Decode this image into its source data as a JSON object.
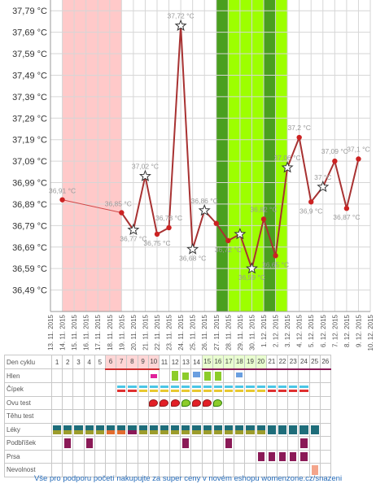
{
  "chart_data": {
    "type": "line",
    "y_ticks": [
      "37,79 °C",
      "37,69 °C",
      "37,59 °C",
      "37,49 °C",
      "37,39 °C",
      "37,29 °C",
      "37,19 °C",
      "37,09 °C",
      "36,99 °C",
      "36,89 °C",
      "36,79 °C",
      "36,69 °C",
      "36,59 °C",
      "36,49 °C"
    ],
    "ylim": [
      36.39,
      37.84
    ],
    "x_dates": [
      "13. 11. 2015",
      "14. 11. 2015",
      "15. 11. 2015",
      "16. 11. 2015",
      "17. 11. 2015",
      "18. 11. 2015",
      "19. 11. 2015",
      "20. 11. 2015",
      "21. 11. 2015",
      "22. 11. 2015",
      "23. 11. 2015",
      "24. 11. 2015",
      "25. 11. 2015",
      "26. 11. 2015",
      "27. 11. 2015",
      "28. 11. 2015",
      "29. 11. 2015",
      "30. 11. 2015",
      "1. 12. 2015",
      "2. 12. 2015",
      "3. 12. 2015",
      "4. 12. 2015",
      "5. 12. 2015",
      "6. 12. 2015",
      "7. 12. 2015",
      "8. 12. 2015",
      "9. 12. 2015",
      "10. 12. 2015"
    ],
    "first_points": [
      {
        "x": 1,
        "y": 36.91,
        "label": "36,91 °C"
      },
      {
        "x": 6,
        "y": 36.85,
        "label": "36,85 °C"
      }
    ],
    "points": [
      {
        "x": 6,
        "y": 36.85,
        "marker": "dot",
        "label": ""
      },
      {
        "x": 7,
        "y": 36.77,
        "marker": "star",
        "label": "36,77 °C"
      },
      {
        "x": 8,
        "y": 37.02,
        "marker": "star",
        "label": "37,02 °C"
      },
      {
        "x": 9,
        "y": 36.75,
        "marker": "dot",
        "label": "36,75 °C"
      },
      {
        "x": 10,
        "y": 36.78,
        "marker": "dot",
        "label": "36,78 °C"
      },
      {
        "x": 11,
        "y": 37.72,
        "marker": "star",
        "label": "37,72 °C"
      },
      {
        "x": 12,
        "y": 36.68,
        "marker": "star",
        "label": "36,68 °C"
      },
      {
        "x": 13,
        "y": 36.86,
        "marker": "star",
        "label": "36,86 °C"
      },
      {
        "x": 14,
        "y": 36.8,
        "marker": "dot",
        "label": ""
      },
      {
        "x": 15,
        "y": 36.72,
        "marker": "dot",
        "label": "36,72 °C"
      },
      {
        "x": 16,
        "y": 36.75,
        "marker": "star",
        "label": ""
      },
      {
        "x": 17,
        "y": 36.59,
        "marker": "star",
        "label": "36,59 °C"
      },
      {
        "x": 18,
        "y": 36.82,
        "marker": "dot",
        "label": "36,82 °C"
      },
      {
        "x": 19,
        "y": 36.65,
        "marker": "dot",
        "label": "36,65 °C"
      },
      {
        "x": 20,
        "y": 37.06,
        "marker": "star",
        "label": "37,06 °C"
      },
      {
        "x": 21,
        "y": 37.2,
        "marker": "dot",
        "label": "37,2 °C"
      },
      {
        "x": 22,
        "y": 36.9,
        "marker": "dot",
        "label": "36,9 °C"
      },
      {
        "x": 23,
        "y": 36.97,
        "marker": "star",
        "label": "37 °C"
      },
      {
        "x": 24,
        "y": 37.09,
        "marker": "dot",
        "label": "37,09 °C"
      },
      {
        "x": 25,
        "y": 36.87,
        "marker": "dot",
        "label": "36,87 °C"
      },
      {
        "x": 26,
        "y": 37.1,
        "marker": "dot",
        "label": "37,1 °C"
      }
    ],
    "bands": [
      {
        "from": 1,
        "to": 6,
        "color": "#ffc9c9"
      },
      {
        "from": 14.5,
        "to": 15.5,
        "color": "#4a9f1f"
      },
      {
        "from": 15.5,
        "to": 18.5,
        "color": "#9dff00"
      },
      {
        "from": 18.5,
        "to": 19.5,
        "color": "#4a9f1f"
      },
      {
        "from": 19.5,
        "to": 20.5,
        "color": "#9dff00"
      }
    ],
    "grid": true
  },
  "table": {
    "row_labels": [
      "Den cyklu",
      "Hlen",
      "Čípek",
      "Ovu test",
      "Těhu test",
      "Léky",
      "Podbříšek",
      "Prsa",
      "Nevolnost"
    ],
    "day_numbers": [
      "1",
      "2",
      "3",
      "4",
      "5",
      "6",
      "7",
      "8",
      "9",
      "10",
      "11",
      "12",
      "13",
      "14",
      "15",
      "16",
      "17",
      "18",
      "19",
      "20",
      "21",
      "22",
      "23",
      "24",
      "25",
      "26"
    ]
  },
  "footer": {
    "text": "Vše pro podporu početí nakupujte za super ceny v novém eshopu womenzone.cz/snazeni"
  }
}
